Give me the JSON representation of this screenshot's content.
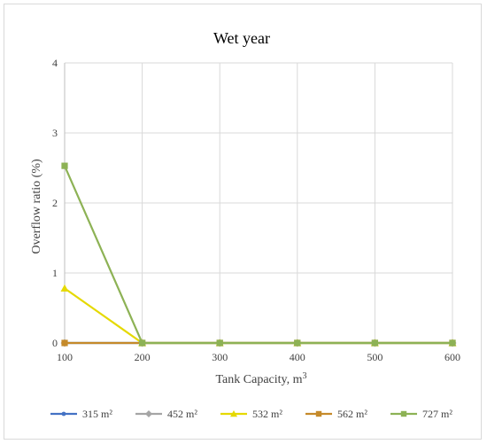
{
  "chart_data": {
    "type": "line",
    "title": "Wet year",
    "xlabel_main": "Tank Capacity, m",
    "xlabel_sup": "3",
    "ylabel": "Overflow  ratio (%)",
    "x": [
      100,
      200,
      300,
      400,
      500,
      600
    ],
    "xlim": [
      100,
      600
    ],
    "ylim": [
      0,
      4
    ],
    "y_ticks": [
      0,
      1,
      2,
      3,
      4
    ],
    "x_ticks": [
      100,
      200,
      300,
      400,
      500,
      600
    ],
    "grid": true,
    "legend_position": "bottom",
    "series": [
      {
        "name": "315 m²",
        "values": [
          0,
          0,
          0,
          0,
          0,
          0
        ],
        "color": "#4472c4",
        "marker": "circle"
      },
      {
        "name": "452 m²",
        "values": [
          0,
          0,
          0,
          0,
          0,
          0
        ],
        "color": "#a5a5a5",
        "marker": "diamond"
      },
      {
        "name": "532 m²",
        "values": [
          0.78,
          0,
          0,
          0,
          0,
          0
        ],
        "color": "#e5d900",
        "marker": "triangle"
      },
      {
        "name": "562 m²",
        "values": [
          0,
          0,
          0,
          0,
          0,
          0
        ],
        "color": "#c58a2a",
        "marker": "square"
      },
      {
        "name": "727 m²",
        "values": [
          2.53,
          0,
          0,
          0,
          0,
          0
        ],
        "color": "#8db255",
        "marker": "square"
      }
    ]
  }
}
